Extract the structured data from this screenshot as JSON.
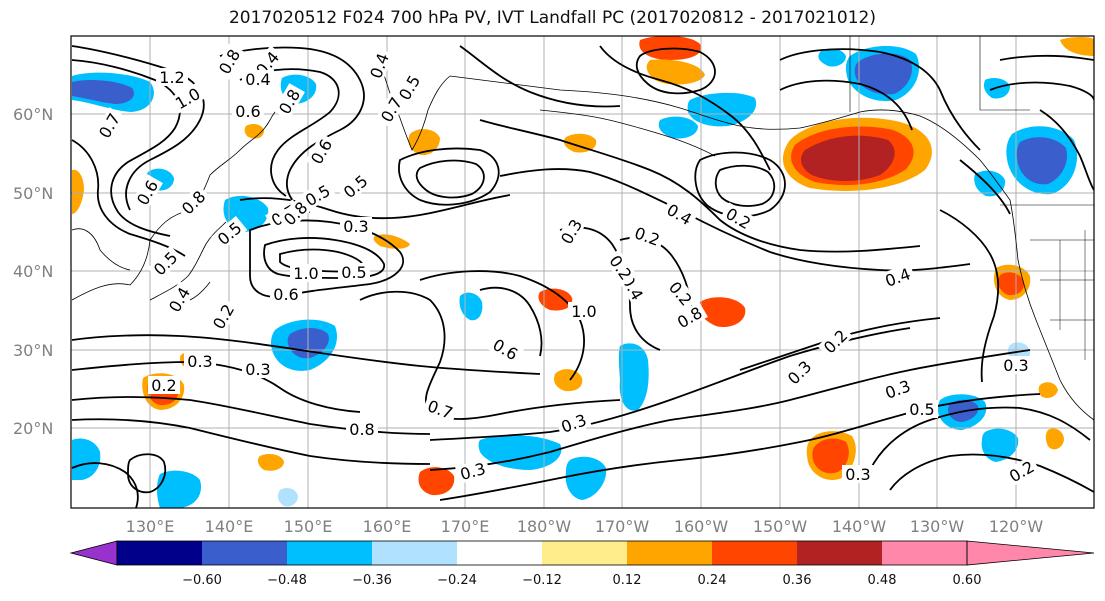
{
  "title": "2017020512 F024 700 hPa PV, IVT Landfall PC (2017020812 - 2017021012)",
  "lat_labels": [
    "20°N",
    "30°N",
    "40°N",
    "50°N",
    "60°N"
  ],
  "lon_labels": [
    "130°E",
    "140°E",
    "150°E",
    "160°E",
    "170°E",
    "180°W",
    "170°W",
    "160°W",
    "150°W",
    "140°W",
    "130°W",
    "120°W"
  ],
  "colorbar": {
    "colors": [
      "#9932cc",
      "#00008b",
      "#3a5fcd",
      "#00bfff",
      "#b0e2ff",
      "#ffffff",
      "#ffec8b",
      "#ffa500",
      "#ff4500",
      "#b22222",
      "#ff88aa"
    ],
    "labels": [
      "−0.60",
      "−0.48",
      "−0.36",
      "−0.24",
      "−0.12",
      "0.12",
      "0.24",
      "0.36",
      "0.48",
      "0.60"
    ]
  },
  "contour_labels": [
    "1.2",
    "1.0",
    "0.8",
    "0.7",
    "0.6",
    "0.5",
    "0.4",
    "0.4",
    "0.8",
    "0.6",
    "0.7",
    "0.5",
    "0.4",
    "0.6",
    "0.5",
    "0.3",
    "0.8",
    "0.7",
    "0.5",
    "0.4",
    "0.2",
    "0.8",
    "0.5",
    "1.0",
    "0.6",
    "0.5",
    "1.0",
    "0.8",
    "0.6",
    "0.3",
    "0.3",
    "0.2",
    "0.3",
    "0.7",
    "0.8",
    "0.3",
    "0.4",
    "0.3",
    "0.2",
    "0.2",
    "0.2",
    "0.4",
    "0.2",
    "0.3",
    "0.2",
    "0.3",
    "0.5",
    "0.3",
    "0.3",
    "0.2",
    "0.4"
  ],
  "map_style": {
    "contour_color": "#000000",
    "coast_color": "#000000",
    "grid_color": "#b0b0b0"
  }
}
